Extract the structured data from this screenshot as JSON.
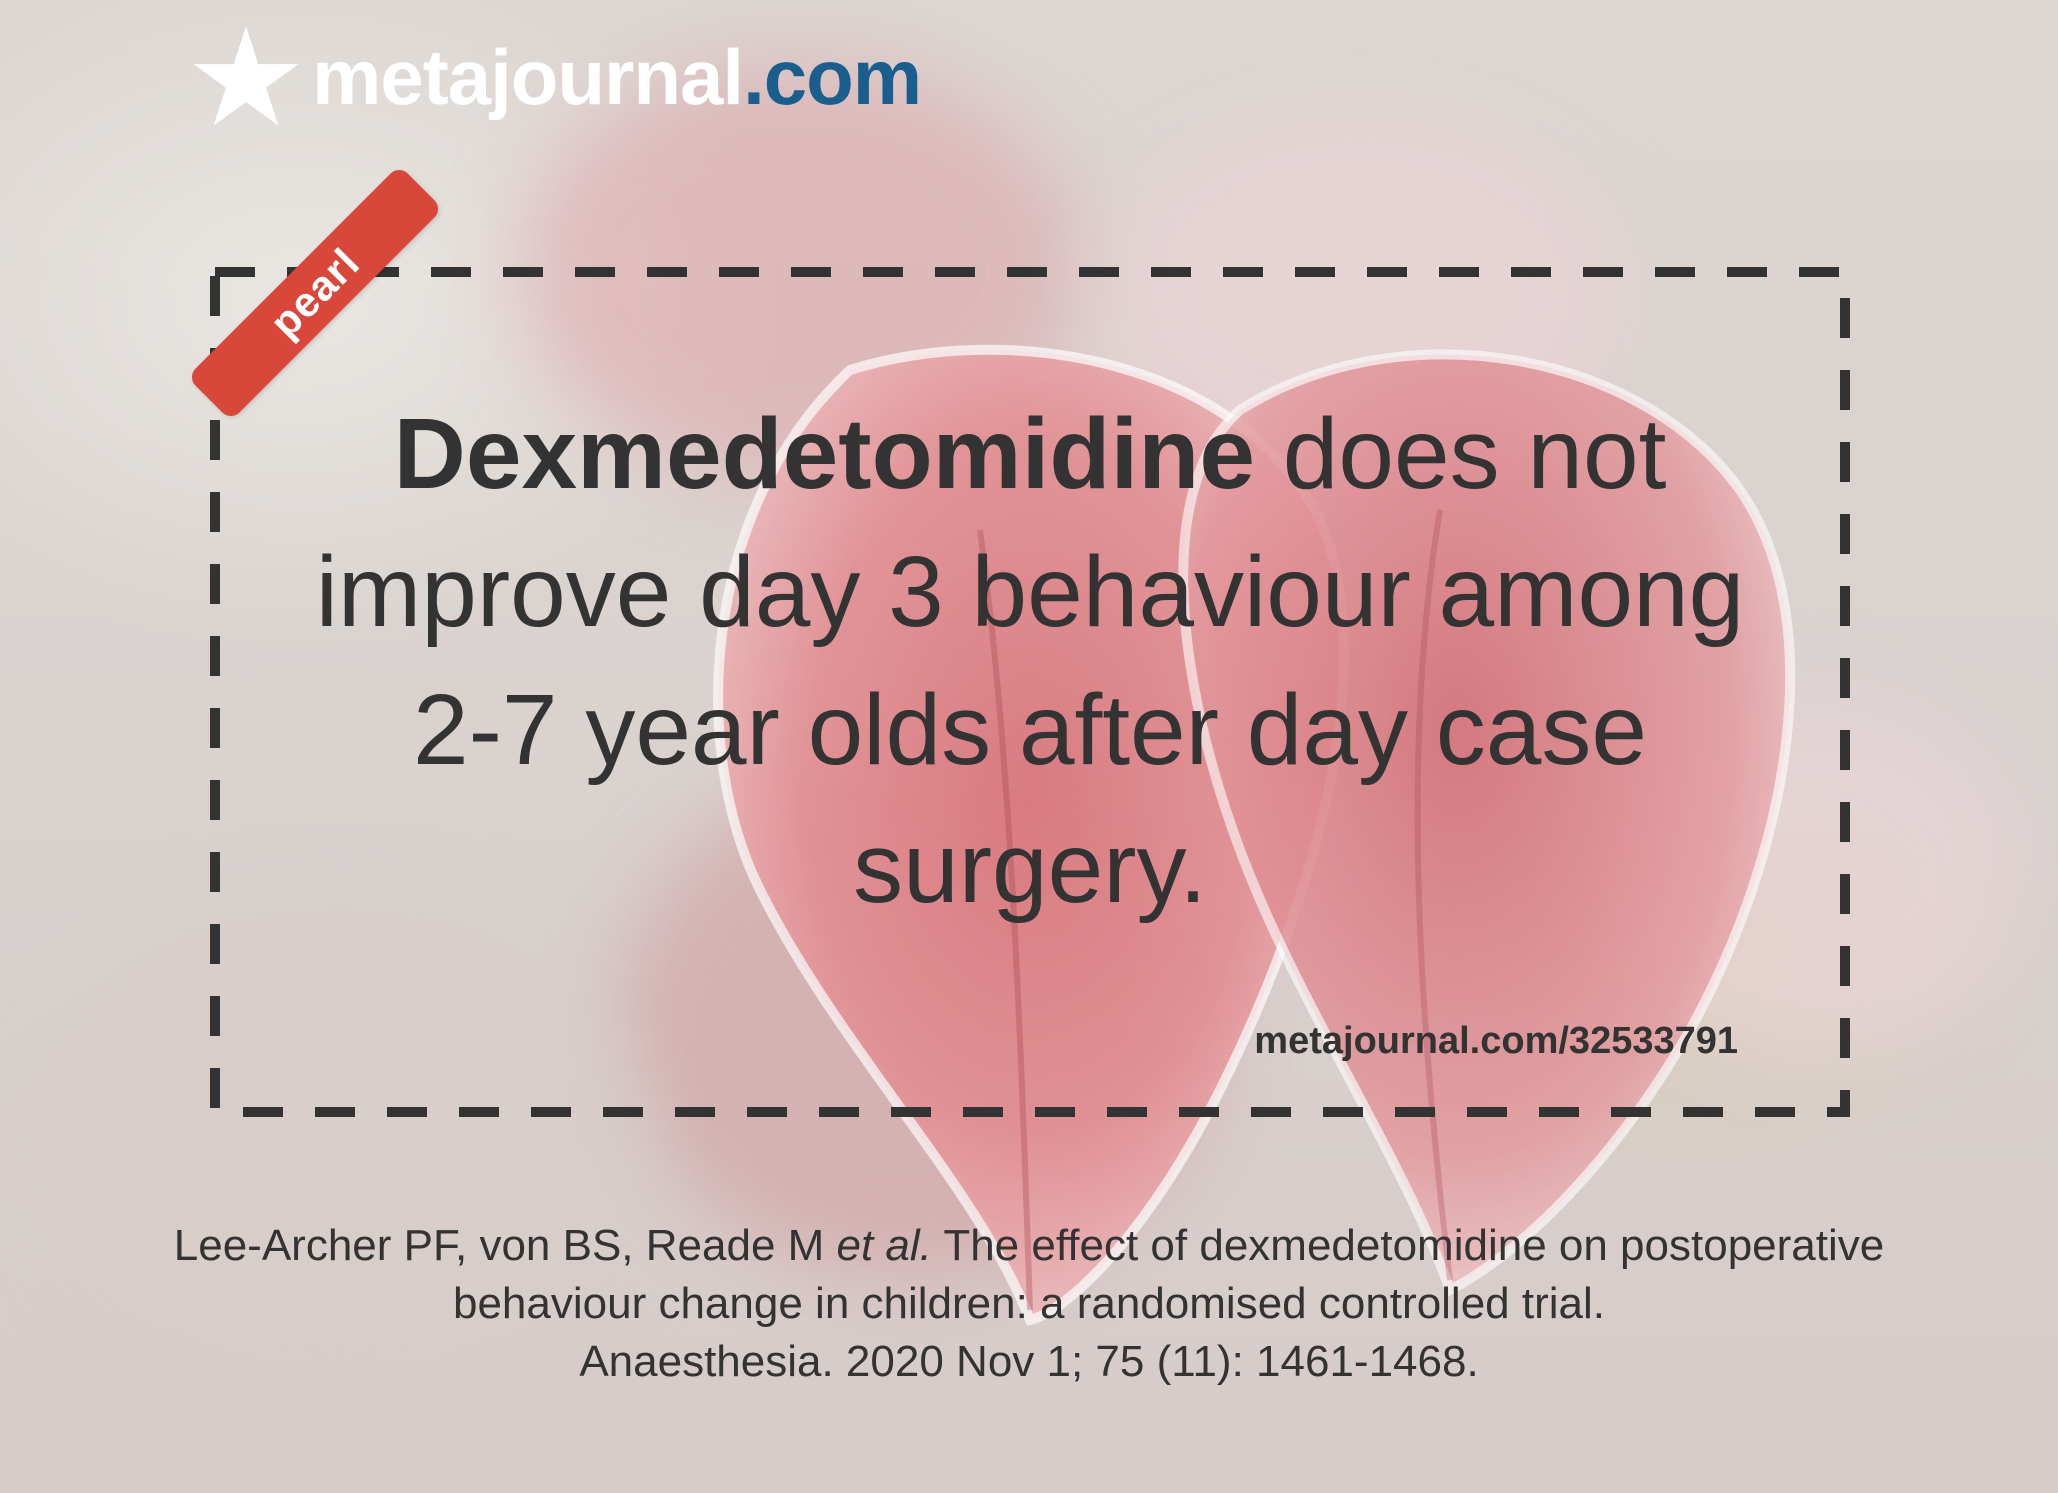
{
  "logo": {
    "icon": "star-icon",
    "name": "metajournal",
    "tld": ".com",
    "name_color": "#ffffff",
    "tld_color": "#1a5e8e"
  },
  "badge": {
    "label": "pearl",
    "color": "#d9473a"
  },
  "headline": {
    "bold": "Dexmedetomidine",
    "rest": " does not improve day 3 behaviour among 2-7 year olds after day case surgery."
  },
  "link": {
    "text": "metajournal.com/32533791"
  },
  "citation": {
    "authors": "Lee-Archer PF, von BS, Reade M ",
    "etal": "et al.",
    "title": " The effect of dexmedetomidine on postoperative behaviour change in children: a randomised controlled trial.",
    "journal": "Anaesthesia. 2020 Nov 1; 75 (11): 1461-1468."
  },
  "colors": {
    "text": "#333333",
    "frame": "#333333"
  }
}
